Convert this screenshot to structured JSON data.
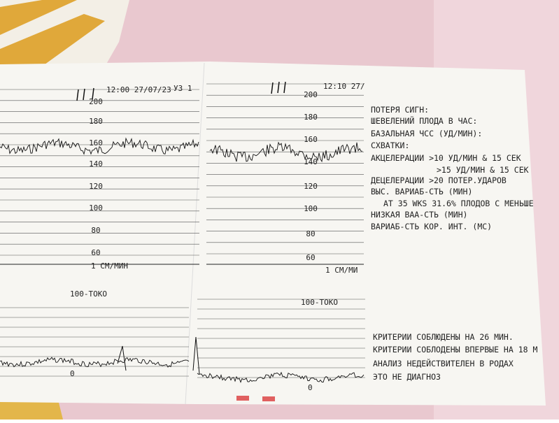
{
  "strip1": {
    "header": "12:00 27/07/23",
    "mode": "УЗ 1",
    "hr_labels": [
      200,
      180,
      160,
      140,
      120,
      100,
      80,
      60
    ],
    "speed": "1 СМ/МИН",
    "toco": "100-ТОКО",
    "toco_zero": 0
  },
  "strip2": {
    "header": "12:10 27/",
    "hr_labels": [
      200,
      180,
      160,
      140,
      120,
      100,
      80,
      60
    ],
    "speed": "1 СМ/МИ",
    "toco": "100-ТОКО",
    "toco_zero": 0
  },
  "summary": {
    "lines": [
      "ПОТЕРЯ СИГН:",
      "ШЕВЕЛЕНИЙ ПЛОДА В ЧАС:",
      "БАЗАЛЬНАЯ ЧСС (УД/МИН):",
      "СХВАТКИ:",
      "АКЦЕЛЕРАЦИИ >10 УД/МИН & 15 СЕК",
      ">15 УД/МИН & 15 СЕК",
      "ДЕЦЕЛЕРАЦИИ >20 ПОТЕР.УДАРОВ",
      "ВЫС. ВАРИАБ-СТЬ (МИН)",
      "АТ 35 WKS 31.6% ПЛОДОВ С МЕНЬШЕ",
      "НИЗКАЯ ВАА-СТЬ (МИН)",
      "ВАРИАБ-СТЬ КОР. ИНТ. (МС)"
    ]
  },
  "criteria": {
    "lines": [
      "КРИТЕРИИ СОБЛЮДЕНЫ НА 26 МИН.",
      "КРИТЕРИИ СОБЛОДЕНЫ ВПЕРВЫЕ НА 18 М",
      "АНАЛИЗ НЕДЕЙСТВИТЕЛЕН В РОДАХ",
      "ЭТО НЕ ДИАГНОЗ"
    ]
  }
}
